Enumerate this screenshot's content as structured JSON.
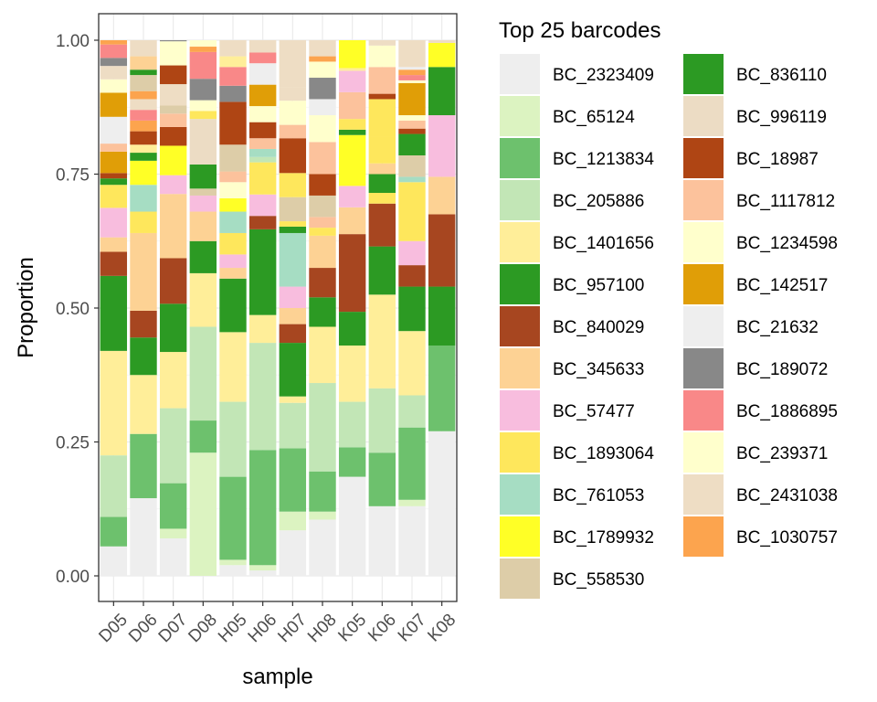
{
  "chart_data": {
    "type": "bar",
    "stacked": true,
    "xlabel": "sample",
    "ylabel": "Proportion",
    "ylim": [
      0,
      1
    ],
    "yticks": [
      "0.00",
      "0.25",
      "0.50",
      "0.75",
      "1.00"
    ],
    "ytick_values": [
      0,
      0.25,
      0.5,
      0.75,
      1.0
    ],
    "grid": true,
    "legend": {
      "title": "Top 25 barcodes",
      "placement": "right",
      "columns": 2
    },
    "categories": [
      "D05",
      "D06",
      "D07",
      "D08",
      "H05",
      "H06",
      "H07",
      "H08",
      "K05",
      "K06",
      "K07",
      "K08"
    ],
    "series": [
      {
        "name": "BC_2323409",
        "color": "#EEEEEE",
        "values": [
          0.055,
          0.145,
          0.07,
          0.0,
          0.02,
          0.01,
          0.085,
          0.105,
          0.185,
          0.13,
          0.13,
          0.27
        ]
      },
      {
        "name": "BC_65124",
        "color": "#DCF3C1",
        "values": [
          0.0,
          0.0,
          0.018,
          0.23,
          0.01,
          0.01,
          0.035,
          0.015,
          0.0,
          0.0,
          0.012,
          0.0
        ]
      },
      {
        "name": "BC_1213834",
        "color": "#6DC16D",
        "values": [
          0.055,
          0.12,
          0.085,
          0.06,
          0.155,
          0.215,
          0.118,
          0.075,
          0.055,
          0.1,
          0.135,
          0.16
        ]
      },
      {
        "name": "BC_205886",
        "color": "#C2E6B6",
        "values": [
          0.115,
          0.0,
          0.14,
          0.175,
          0.14,
          0.2,
          0.085,
          0.165,
          0.085,
          0.12,
          0.06,
          0.0
        ]
      },
      {
        "name": "BC_1401656",
        "color": "#FFEE99",
        "values": [
          0.195,
          0.11,
          0.105,
          0.1,
          0.13,
          0.052,
          0.012,
          0.105,
          0.105,
          0.175,
          0.12,
          0.0
        ]
      },
      {
        "name": "BC_957100",
        "color": "#2C9A23",
        "values": [
          0.14,
          0.07,
          0.09,
          0.06,
          0.1,
          0.16,
          0.1,
          0.055,
          0.063,
          0.09,
          0.083,
          0.11
        ]
      },
      {
        "name": "BC_840029",
        "color": "#A74620",
        "values": [
          0.045,
          0.05,
          0.085,
          0.0,
          0.0,
          0.025,
          0.035,
          0.055,
          0.145,
          0.08,
          0.04,
          0.135
        ]
      },
      {
        "name": "BC_345633",
        "color": "#FDD294",
        "values": [
          0.027,
          0.145,
          0.12,
          0.055,
          0.02,
          0.0,
          0.03,
          0.06,
          0.05,
          0.0,
          0.0,
          0.07
        ]
      },
      {
        "name": "BC_57477",
        "color": "#F8BDDE",
        "values": [
          0.055,
          0.0,
          0.035,
          0.03,
          0.025,
          0.04,
          0.04,
          0.0,
          0.04,
          0.0,
          0.045,
          0.115
        ]
      },
      {
        "name": "BC_1893064",
        "color": "#FEE75C",
        "values": [
          0.043,
          0.04,
          0.0,
          0.0,
          0.04,
          0.0,
          0.0,
          0.0,
          0.0,
          0.02,
          0.11,
          0.0
        ]
      },
      {
        "name": "BC_761053",
        "color": "#A6DDC3",
        "values": [
          0.0,
          0.05,
          0.0,
          0.0,
          0.04,
          0.0,
          0.1,
          0.0,
          0.0,
          0.0,
          0.01,
          0.0
        ]
      },
      {
        "name": "BC_1789932",
        "color": "#FFFF26",
        "values": [
          0.0,
          0.045,
          0.055,
          0.0,
          0.025,
          0.0,
          0.0,
          0.0,
          0.095,
          0.0,
          0.0,
          0.0
        ]
      },
      {
        "name": "BC_558530",
        "color": "#DDCDA8",
        "values": [
          0.0,
          0.0,
          0.0,
          0.013,
          0.0,
          0.0,
          0.0,
          0.0,
          0.0,
          0.0,
          0.0,
          0.0
        ]
      },
      {
        "name": "BC_836110",
        "color": "#2C9A23",
        "values": [
          0.012,
          0.015,
          0.0,
          0.045,
          0.0,
          0.0,
          0.012,
          0.0,
          0.01,
          0.035,
          0.0,
          0.09
        ]
      },
      {
        "name": "BC_996119",
        "color": "#ECDCC4",
        "values": [
          0.0,
          0.0,
          0.0,
          0.085,
          0.0,
          0.0,
          0.0,
          0.0,
          0.0,
          0.0,
          0.0,
          0.0
        ]
      },
      {
        "name": "BC_18987",
        "color": "#AF4514",
        "values": [
          0.01,
          0.0,
          0.035,
          0.0,
          0.0,
          0.0,
          0.0,
          0.0,
          0.0,
          0.0,
          0.0,
          0.0
        ]
      },
      {
        "name": "BC_1117812",
        "color": "#FCC29C",
        "values": [
          0.0,
          0.0,
          0.0,
          0.0,
          0.0,
          0.0,
          0.0,
          0.0,
          0.0,
          0.0,
          0.0,
          0.0
        ]
      },
      {
        "name": "BC_1234598",
        "color": "#FFFFCC",
        "values": [
          0.0,
          0.0,
          0.0,
          0.0,
          0.0,
          0.0,
          0.0,
          0.0,
          0.0,
          0.0,
          0.0,
          0.0
        ]
      },
      {
        "name": "BC_142517",
        "color": "#E09E07",
        "values": [
          0.04,
          0.0,
          0.0,
          0.0,
          0.0,
          0.0,
          0.0,
          0.0,
          0.0,
          0.0,
          0.0,
          0.0
        ]
      },
      {
        "name": "BC_21632",
        "color": "#EEEEEE",
        "values": [
          0.0,
          0.0,
          0.0,
          0.0,
          0.0,
          0.0,
          0.0,
          0.0,
          0.0,
          0.0,
          0.0,
          0.0
        ]
      },
      {
        "name": "BC_189072",
        "color": "#888888",
        "values": [
          0.0,
          0.0,
          0.0,
          0.0,
          0.0,
          0.0,
          0.0,
          0.0,
          0.0,
          0.0,
          0.0,
          0.0
        ]
      },
      {
        "name": "BC_1886895",
        "color": "#F98888",
        "values": [
          0.0,
          0.0,
          0.0,
          0.0,
          0.0,
          0.0,
          0.0,
          0.0,
          0.0,
          0.0,
          0.0,
          0.0
        ]
      },
      {
        "name": "BC_239371",
        "color": "#FFFFCC",
        "values": [
          0.0,
          0.0,
          0.0,
          0.0,
          0.0,
          0.0,
          0.0,
          0.0,
          0.0,
          0.0,
          0.0,
          0.0
        ]
      },
      {
        "name": "BC_2431038",
        "color": "#EEDDC4",
        "values": [
          0.0,
          0.0,
          0.0,
          0.0,
          0.0,
          0.0,
          0.0,
          0.0,
          0.0,
          0.0,
          0.0,
          0.0
        ]
      },
      {
        "name": "BC_1030757",
        "color": "#FCA44E",
        "values": [
          0.0,
          0.0,
          0.0,
          0.0,
          0.0,
          0.0,
          0.0,
          0.0,
          0.0,
          0.0,
          0.0,
          0.0
        ]
      }
    ],
    "upper_segments": [
      [
        [
          "#FCC29C",
          0.015
        ],
        [
          "#EEEEEE",
          0.05
        ],
        [
          "#E09E07",
          0.045
        ],
        [
          "#FFFFCC",
          0.025
        ],
        [
          "#EEDDC4",
          0.025
        ],
        [
          "#888888",
          0.015
        ],
        [
          "#F98888",
          0.025
        ],
        [
          "#FCA44E",
          0.012
        ]
      ],
      [
        [
          "#FFEE99",
          0.015
        ],
        [
          "#AF4514",
          0.025
        ],
        [
          "#FCA44E",
          0.02
        ],
        [
          "#F98888",
          0.02
        ],
        [
          "#EEDDC4",
          0.02
        ],
        [
          "#FCA44E",
          0.015
        ],
        [
          "#DDCDA8",
          0.03
        ],
        [
          "#2C9A23",
          0.01
        ],
        [
          "#FDD294",
          0.025
        ],
        [
          "#F98888",
          0.0
        ]
      ],
      [
        [
          "#FCC29C",
          0.025
        ],
        [
          "#DDCDA8",
          0.015
        ],
        [
          "#EEDDC4",
          0.04
        ],
        [
          "#AF4514",
          0.035
        ],
        [
          "#FFFFCC",
          0.045
        ],
        [
          "#888888",
          0.05
        ]
      ],
      [
        [
          "#FEE75C",
          0.015
        ],
        [
          "#FFFFCC",
          0.02
        ],
        [
          "#888888",
          0.04
        ],
        [
          "#F98888",
          0.05
        ],
        [
          "#FCA44E",
          0.01
        ],
        [
          "#FFFF26",
          0.0
        ],
        [
          "#FFFFCC",
          0.03
        ]
      ],
      [
        [
          "#FFFFCC",
          0.03
        ],
        [
          "#FCC29C",
          0.02
        ],
        [
          "#DDCDA8",
          0.05
        ],
        [
          "#AF4514",
          0.08
        ],
        [
          "#888888",
          0.03
        ],
        [
          "#F98888",
          0.035
        ],
        [
          "#FFEE99",
          0.02
        ]
      ],
      [
        [
          "#FEE75C",
          0.06
        ],
        [
          "#C2E6B6",
          0.01
        ],
        [
          "#A6DDC3",
          0.015
        ],
        [
          "#FCC29C",
          0.02
        ],
        [
          "#AF4514",
          0.03
        ],
        [
          "#FFFFCC",
          0.03
        ],
        [
          "#E09E07",
          0.04
        ],
        [
          "#EEEEEE",
          0.04
        ],
        [
          "#F98888",
          0.02
        ]
      ],
      [
        [
          "#FEE75C",
          0.01
        ],
        [
          "#DDCDA8",
          0.045
        ],
        [
          "#FEE75C",
          0.045
        ],
        [
          "#AF4514",
          0.065
        ],
        [
          "#FCC29C",
          0.025
        ],
        [
          "#FFFFCC",
          0.045
        ],
        [
          "#EEDDC4",
          0.025
        ]
      ],
      [
        [
          "#FEE75C",
          0.015
        ],
        [
          "#FCC29C",
          0.02
        ],
        [
          "#DDCDA8",
          0.04
        ],
        [
          "#AF4514",
          0.04
        ],
        [
          "#FCC29C",
          0.06
        ],
        [
          "#FFFFCC",
          0.05
        ],
        [
          "#EEEEEE",
          0.03
        ],
        [
          "#888888",
          0.04
        ],
        [
          "#FFFFCC",
          0.03
        ],
        [
          "#FCA44E",
          0.01
        ]
      ],
      [
        [
          "#FEE75C",
          0.02
        ],
        [
          "#FCC29C",
          0.05
        ],
        [
          "#F8BDDE",
          0.04
        ],
        [
          "#FFEE99",
          0.005
        ],
        [
          "#FFFF26",
          0.095
        ],
        [
          "#2C9A23",
          0.01
        ],
        [
          "#FDD294",
          0.01
        ],
        [
          "#AF4514",
          0.01
        ],
        [
          "#FFFFCC",
          0.06
        ],
        [
          "#EEEEEE",
          0.035
        ],
        [
          "#F98888",
          0.02
        ],
        [
          "#FFFFCC",
          0.01
        ]
      ],
      [
        [
          "#FDD294",
          0.02
        ],
        [
          "#FEE75C",
          0.05
        ],
        [
          "#FEE75C",
          0.07
        ],
        [
          "#AF4514",
          0.01
        ],
        [
          "#FCC29C",
          0.05
        ],
        [
          "#FFFFCC",
          0.04
        ],
        [
          "#EEDDC4",
          0.01
        ],
        [
          "#EEEEEE",
          0.0
        ]
      ],
      [
        [
          "#DDCDA8",
          0.04
        ],
        [
          "#2C9A23",
          0.04
        ],
        [
          "#AF4514",
          0.01
        ],
        [
          "#FCC29C",
          0.015
        ],
        [
          "#FFFFCC",
          0.01
        ],
        [
          "#E09E07",
          0.06
        ],
        [
          "#FFFFCC",
          0.005
        ],
        [
          "#F98888",
          0.01
        ],
        [
          "#FCA44E",
          0.01
        ],
        [
          "#EEEEEE",
          0.005
        ]
      ],
      [
        [
          "#FFFF26",
          0.045
        ],
        [
          "#F8BDDE",
          0.0
        ],
        [
          "#2C9A23",
          0.0
        ]
      ]
    ]
  }
}
